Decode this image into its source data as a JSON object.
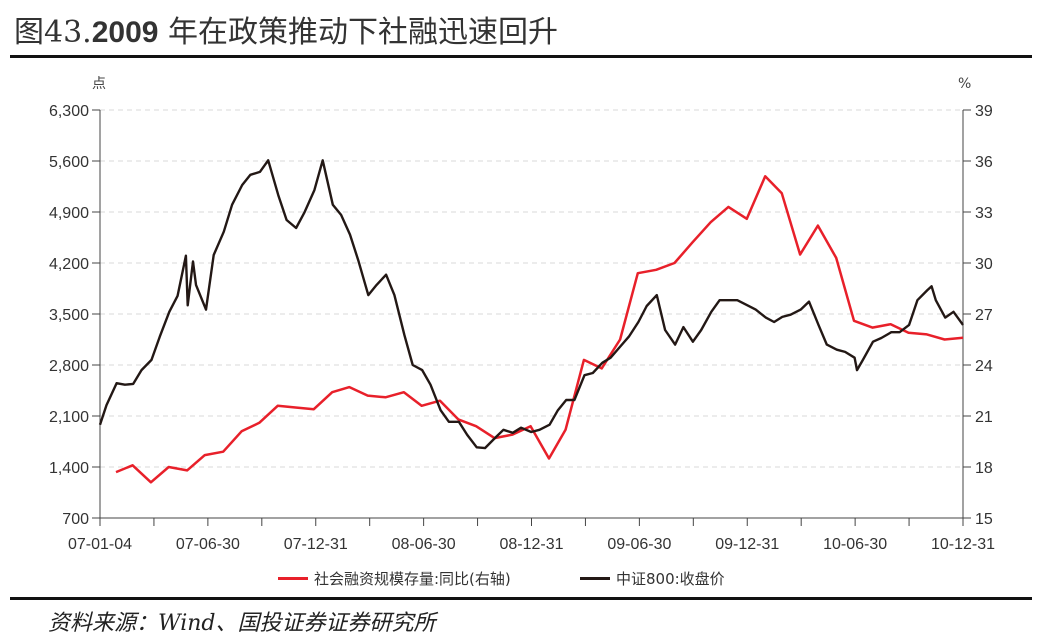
{
  "title": {
    "prefix": "图43.",
    "year": "2009",
    "text": " 年在政策推动下社融迅速回升"
  },
  "source": "资料来源：Wind、国投证券证券研究所",
  "colors": {
    "red_series": "#e8202a",
    "black_series": "#231815",
    "grid": "#d9d9d9"
  },
  "chart_data": {
    "type": "line",
    "title": "",
    "left_axis": {
      "unit": "点",
      "range": [
        700,
        6300
      ],
      "ticks": [
        "700",
        "1,400",
        "2,100",
        "2,800",
        "3,500",
        "4,200",
        "4,900",
        "5,600",
        "6,300"
      ]
    },
    "right_axis": {
      "unit": "%",
      "range": [
        15,
        39
      ],
      "ticks": [
        "15",
        "18",
        "21",
        "24",
        "27",
        "30",
        "33",
        "36",
        "39"
      ]
    },
    "x_axis": {
      "range": [
        "2007-01-04",
        "2010-12-31"
      ],
      "ticks": [
        "07-01-04",
        "07-06-30",
        "07-12-31",
        "08-06-30",
        "08-12-31",
        "09-06-30",
        "09-12-31",
        "10-06-30",
        "10-12-31"
      ]
    },
    "grid": "horizontal dashed",
    "legend_position": "bottom",
    "series": [
      {
        "name": "社会融资规模存量:同比(右轴)",
        "axis": "right",
        "color": "#e8202a",
        "x": [
          "2007-01",
          "2007-02",
          "2007-03",
          "2007-04",
          "2007-05",
          "2007-06",
          "2007-07",
          "2007-08",
          "2007-09",
          "2007-10",
          "2007-11",
          "2007-12",
          "2008-01",
          "2008-02",
          "2008-03",
          "2008-04",
          "2008-05",
          "2008-06",
          "2008-07",
          "2008-08",
          "2008-09",
          "2008-10",
          "2008-11",
          "2008-12",
          "2009-01",
          "2009-02",
          "2009-03",
          "2009-04",
          "2009-05",
          "2009-06",
          "2009-07",
          "2009-08",
          "2009-09",
          "2009-10",
          "2009-11",
          "2009-12",
          "2010-01",
          "2010-02",
          "2010-03",
          "2010-04",
          "2010-05",
          "2010-06",
          "2010-07",
          "2010-08",
          "2010-09",
          "2010-10",
          "2010-11",
          "2010-12"
        ],
        "values": [
          17.7,
          18.1,
          17.1,
          18.0,
          17.8,
          18.7,
          18.9,
          20.1,
          20.6,
          21.6,
          21.5,
          21.4,
          22.4,
          22.7,
          22.2,
          22.1,
          22.4,
          21.6,
          21.9,
          20.8,
          20.4,
          19.7,
          19.9,
          20.4,
          18.5,
          20.2,
          24.3,
          23.8,
          25.5,
          29.4,
          29.6,
          30.0,
          31.2,
          32.4,
          33.3,
          32.6,
          35.1,
          34.1,
          30.5,
          32.2,
          30.3,
          26.6,
          26.2,
          26.4,
          25.9,
          25.8,
          25.5,
          25.6
        ]
      },
      {
        "name": "中证800:收盘价",
        "axis": "left",
        "color": "#231815",
        "x": [
          "2007-01-04",
          "2007-01-15",
          "2007-02-01",
          "2007-02-15",
          "2007-03-01",
          "2007-03-15",
          "2007-04-01",
          "2007-04-15",
          "2007-05-01",
          "2007-05-15",
          "2007-05-29",
          "2007-06-01",
          "2007-06-10",
          "2007-06-15",
          "2007-07-02",
          "2007-07-15",
          "2007-08-01",
          "2007-08-15",
          "2007-09-01",
          "2007-09-15",
          "2007-10-01",
          "2007-10-15",
          "2007-11-01",
          "2007-11-15",
          "2007-12-01",
          "2007-12-15",
          "2008-01-01",
          "2008-01-15",
          "2008-02-01",
          "2008-02-15",
          "2008-03-01",
          "2008-03-15",
          "2008-04-01",
          "2008-04-15",
          "2008-05-01",
          "2008-05-15",
          "2008-06-01",
          "2008-06-15",
          "2008-07-01",
          "2008-07-15",
          "2008-08-01",
          "2008-08-15",
          "2008-09-01",
          "2008-09-15",
          "2008-10-01",
          "2008-10-15",
          "2008-11-01",
          "2008-11-15",
          "2008-12-01",
          "2008-12-15",
          "2009-01-01",
          "2009-01-15",
          "2009-02-01",
          "2009-02-15",
          "2009-03-01",
          "2009-03-15",
          "2009-04-01",
          "2009-04-15",
          "2009-05-01",
          "2009-05-15",
          "2009-06-01",
          "2009-06-15",
          "2009-07-01",
          "2009-07-15",
          "2009-08-01",
          "2009-08-15",
          "2009-09-01",
          "2009-09-15",
          "2009-10-01",
          "2009-10-15",
          "2009-11-01",
          "2009-11-15",
          "2009-12-01",
          "2009-12-15",
          "2010-01-01",
          "2010-01-15",
          "2010-02-01",
          "2010-02-15",
          "2010-03-01",
          "2010-03-15",
          "2010-04-01",
          "2010-04-15",
          "2010-05-01",
          "2010-05-15",
          "2010-06-01",
          "2010-06-15",
          "2010-07-01",
          "2010-07-05",
          "2010-07-15",
          "2010-08-01",
          "2010-08-15",
          "2010-09-01",
          "2010-09-15",
          "2010-10-01",
          "2010-10-15",
          "2010-11-01",
          "2010-11-08",
          "2010-11-15",
          "2010-12-01",
          "2010-12-15",
          "2010-12-31"
        ],
        "values": [
          1980,
          2250,
          2550,
          2530,
          2540,
          2730,
          2870,
          3190,
          3530,
          3750,
          4300,
          3620,
          4220,
          3900,
          3560,
          4310,
          4630,
          5000,
          5270,
          5410,
          5450,
          5610,
          5130,
          4790,
          4680,
          4890,
          5200,
          5610,
          5000,
          4860,
          4590,
          4240,
          3760,
          3900,
          4040,
          3760,
          3210,
          2800,
          2730,
          2530,
          2180,
          2020,
          2020,
          1840,
          1670,
          1660,
          1800,
          1910,
          1870,
          1940,
          1880,
          1910,
          1980,
          2180,
          2320,
          2320,
          2660,
          2690,
          2830,
          2900,
          3060,
          3190,
          3390,
          3610,
          3760,
          3280,
          3080,
          3320,
          3120,
          3280,
          3530,
          3690,
          3690,
          3690,
          3620,
          3560,
          3450,
          3390,
          3460,
          3490,
          3560,
          3670,
          3350,
          3080,
          3010,
          2980,
          2900,
          2730,
          2870,
          3120,
          3170,
          3250,
          3250,
          3350,
          3690,
          3830,
          3880,
          3690,
          3450,
          3530,
          3350
        ]
      }
    ]
  }
}
